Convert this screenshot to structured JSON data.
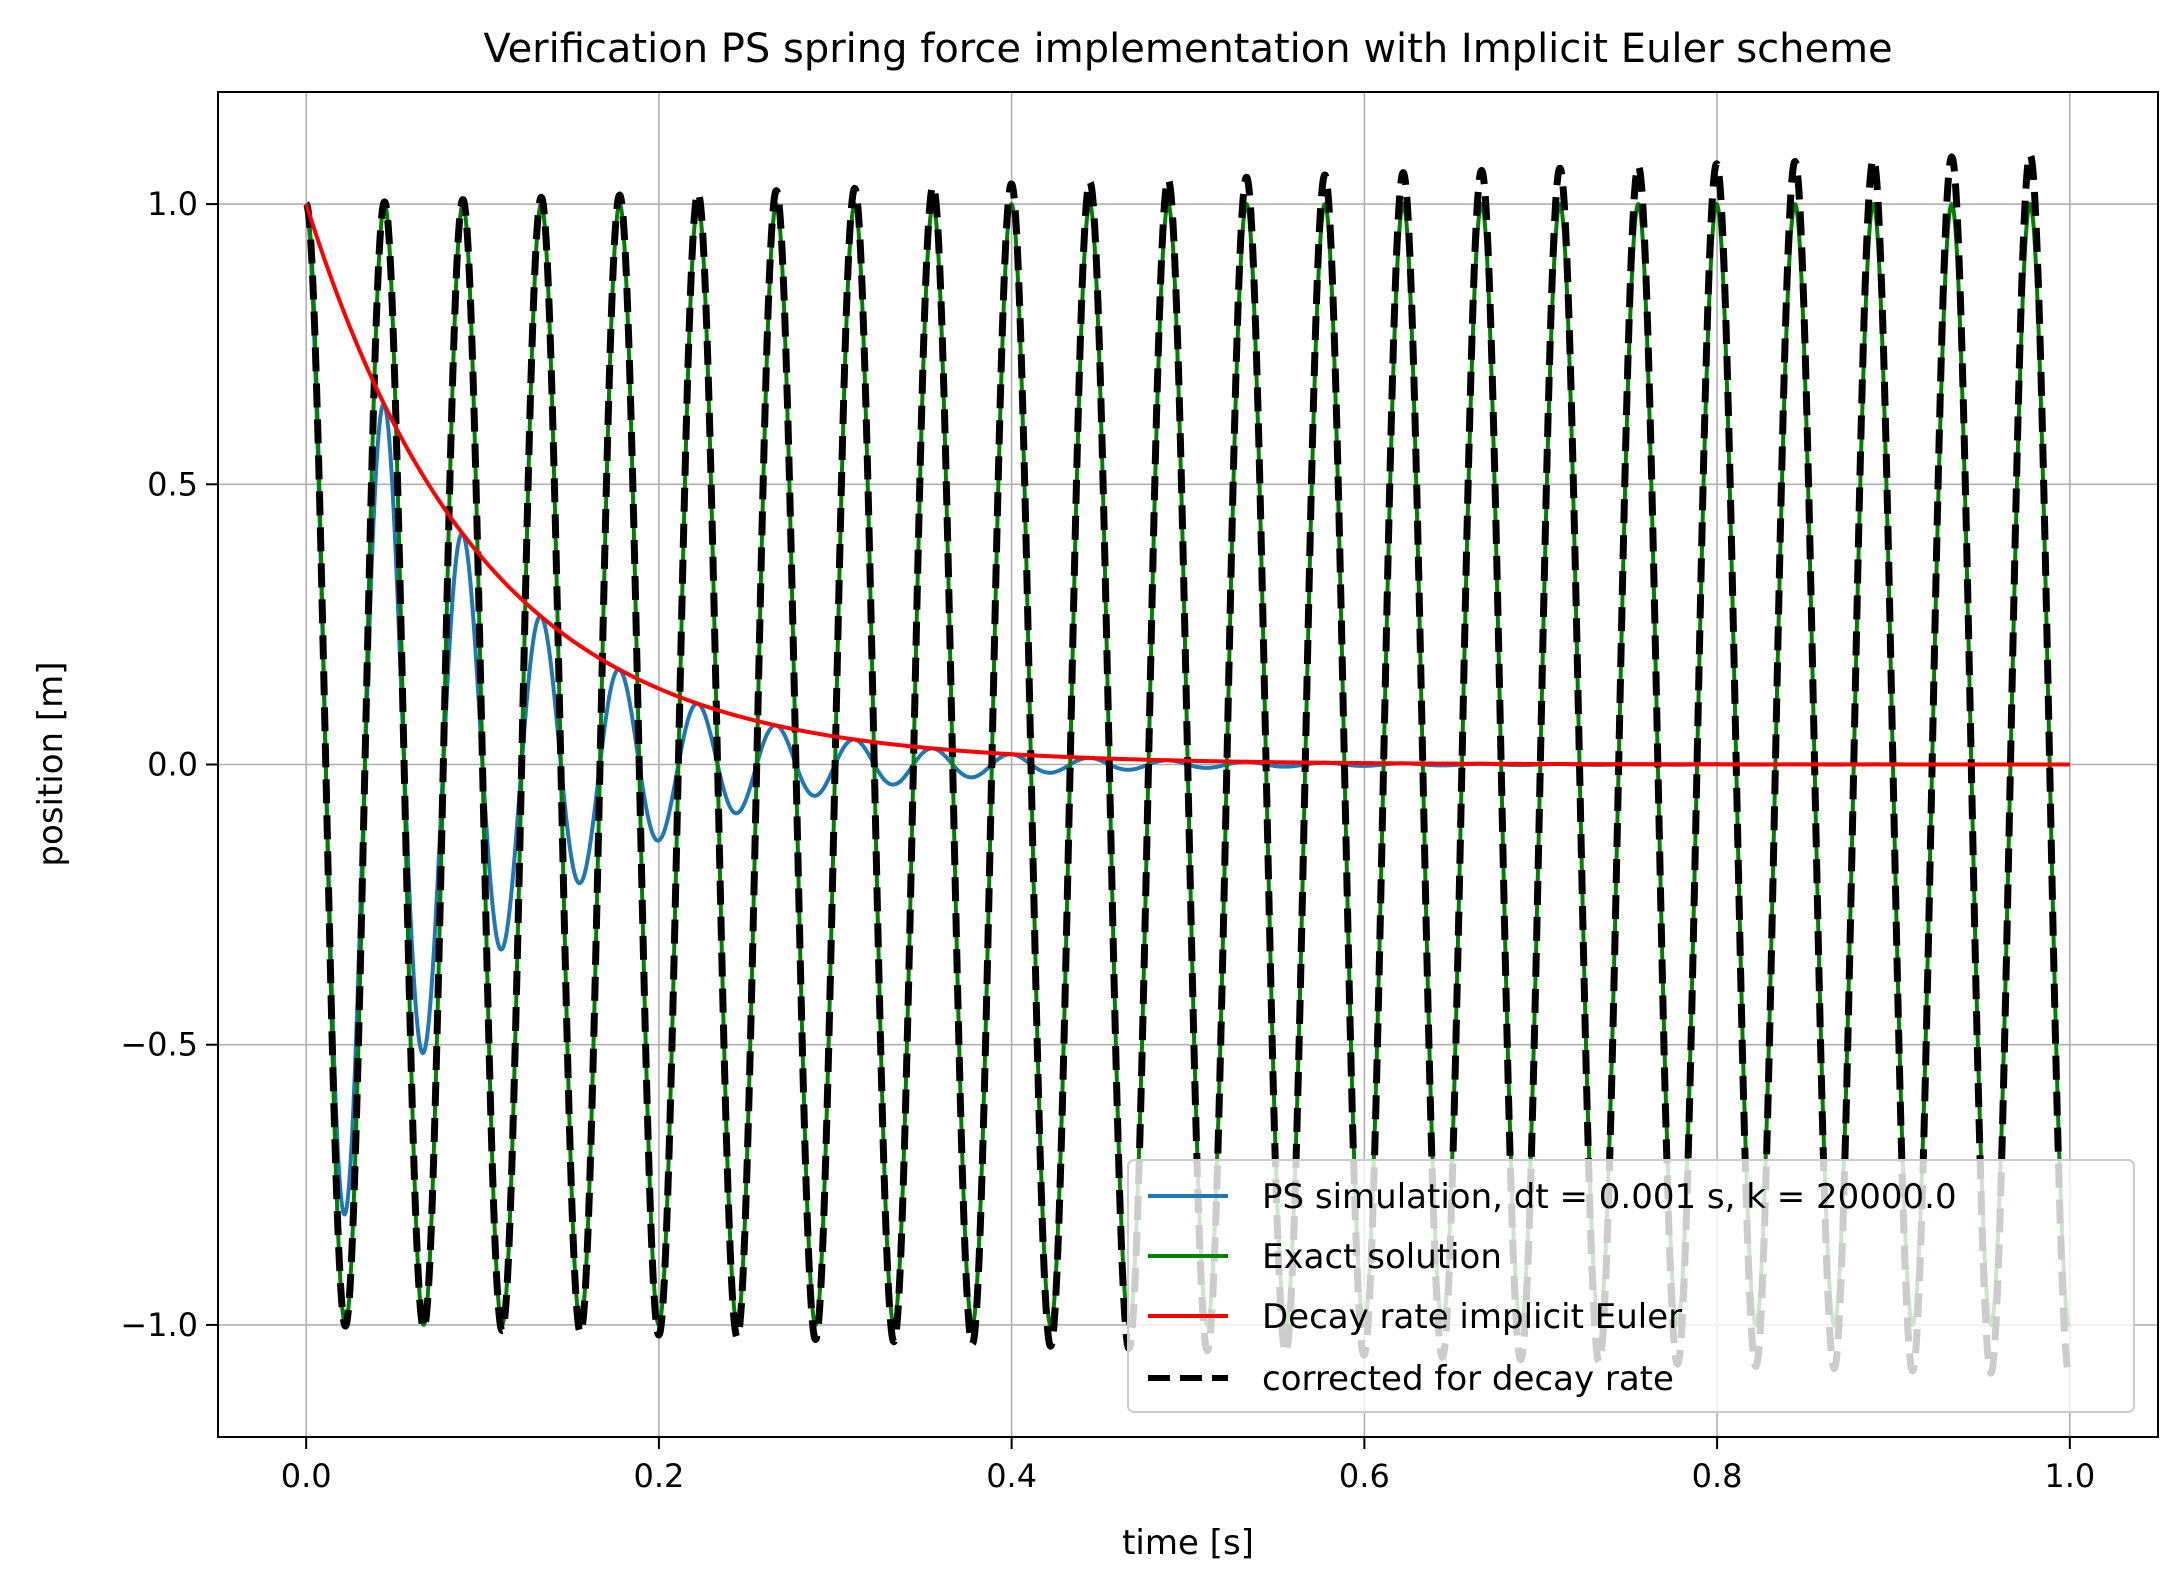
{
  "chart_data": {
    "type": "line",
    "title": "Verification PS spring force implementation with Implicit Euler scheme",
    "xlabel": "time [s]",
    "ylabel": "position [m]",
    "xlim": [
      -0.05,
      1.05
    ],
    "ylim": [
      -1.2,
      1.2
    ],
    "xticks": [
      0.0,
      0.2,
      0.4,
      0.6,
      0.8,
      1.0
    ],
    "xtick_labels": [
      "0.0",
      "0.2",
      "0.4",
      "0.6",
      "0.8",
      "1.0"
    ],
    "yticks": [
      -1.0,
      -0.5,
      0.0,
      0.5,
      1.0
    ],
    "ytick_labels": [
      "−1.0",
      "−0.5",
      "0.0",
      "0.5",
      "1.0"
    ],
    "grid": true,
    "legend_position": "lower-right",
    "colors": {
      "ps_simulation": "#1f77b4",
      "exact": "#008000",
      "decay": "#ff0000",
      "corrected": "#000000",
      "grid": "#b0b0b0"
    },
    "model": {
      "time_step_s": 0.001,
      "spring_constant": 20000.0,
      "oscillation_period_s": 0.04443,
      "decay_rate_per_s": 10.0,
      "time_range_s": [
        0.0,
        1.0
      ]
    },
    "series": [
      {
        "name": "PS simulation, dt = 0.001 s, k = 20000.0",
        "style": "solid",
        "formula": "exp(-decay_rate*t)*cos(2*pi*t/period)"
      },
      {
        "name": "Exact solution",
        "style": "solid",
        "formula": "cos(2*pi*t/period)"
      },
      {
        "name": "Decay rate implicit Euler",
        "style": "solid",
        "formula": "exp(-decay_rate*t)"
      },
      {
        "name": "corrected for decay rate",
        "style": "dashed",
        "formula": "(1+0.09*t)*cos(2*pi*t/period)"
      }
    ]
  }
}
